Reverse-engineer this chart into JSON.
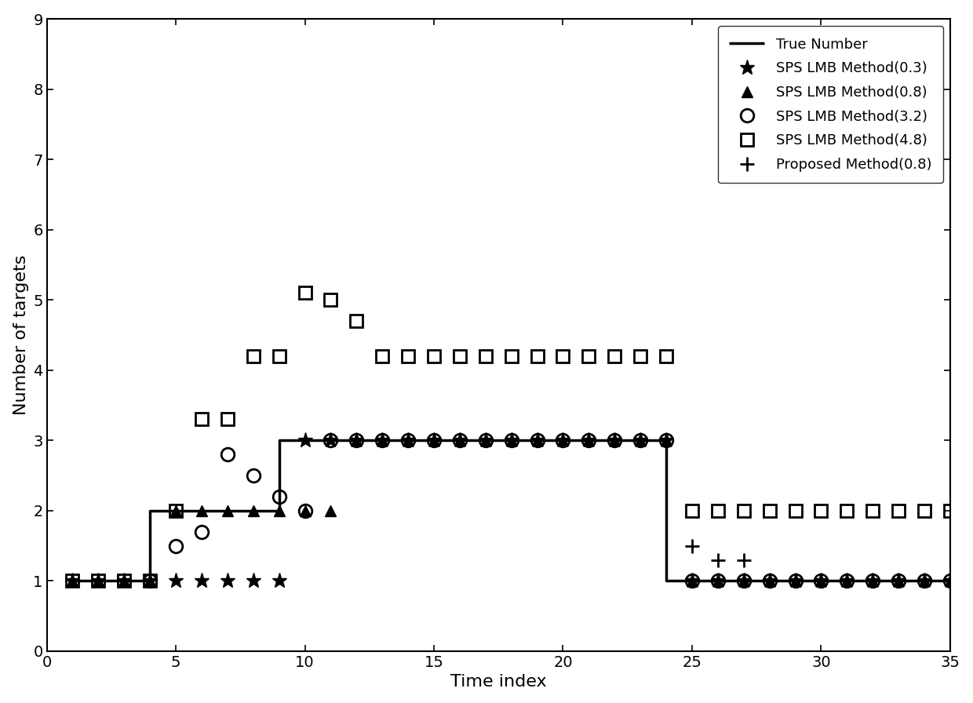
{
  "true_number": {
    "x": [
      1,
      4,
      4,
      9,
      9,
      24,
      24,
      35
    ],
    "y": [
      1,
      1,
      2,
      2,
      3,
      3,
      1,
      1
    ]
  },
  "sps_03": {
    "x": [
      1,
      2,
      3,
      4,
      5,
      6,
      7,
      8,
      9,
      10,
      11,
      12,
      13,
      14,
      15,
      16,
      17,
      18,
      19,
      20,
      21,
      22,
      23,
      24,
      25,
      26,
      27,
      28,
      29,
      30,
      31,
      32,
      33,
      34,
      35
    ],
    "y": [
      1,
      1,
      1,
      1,
      1,
      1,
      1,
      1,
      1,
      3,
      3,
      3,
      3,
      3,
      3,
      3,
      3,
      3,
      3,
      3,
      3,
      3,
      3,
      3,
      1,
      1,
      1,
      1,
      1,
      1,
      1,
      1,
      1,
      1,
      1
    ]
  },
  "sps_08": {
    "x": [
      1,
      2,
      3,
      4,
      5,
      6,
      7,
      8,
      9,
      10,
      11,
      12,
      13,
      14,
      15,
      16,
      17,
      18,
      19,
      20,
      21,
      22,
      23,
      24,
      25,
      26,
      27,
      28,
      29,
      30,
      31,
      32,
      33,
      34,
      35
    ],
    "y": [
      1,
      1,
      1,
      1,
      2,
      2,
      2,
      2,
      2,
      2,
      2,
      3,
      3,
      3,
      3,
      3,
      3,
      3,
      3,
      3,
      3,
      3,
      3,
      3,
      1,
      1,
      1,
      1,
      1,
      1,
      1,
      1,
      1,
      1,
      1
    ]
  },
  "sps_32": {
    "x": [
      4,
      5,
      6,
      7,
      8,
      9,
      10,
      11,
      12,
      13,
      14,
      15,
      16,
      17,
      18,
      19,
      20,
      21,
      22,
      23,
      24,
      25,
      26,
      27,
      28,
      29,
      30,
      31,
      32,
      33,
      34,
      35
    ],
    "y": [
      1,
      1.5,
      1.7,
      2.8,
      2.5,
      2.2,
      2.0,
      3,
      3,
      3,
      3,
      3,
      3,
      3,
      3,
      3,
      3,
      3,
      3,
      3,
      3,
      1,
      1,
      1,
      1,
      1,
      1,
      1,
      1,
      1,
      1,
      1
    ]
  },
  "sps_48": {
    "x": [
      1,
      2,
      3,
      4,
      5,
      6,
      7,
      8,
      9,
      10,
      11,
      12,
      13,
      14,
      15,
      16,
      17,
      18,
      19,
      20,
      21,
      22,
      23,
      24,
      25,
      26,
      27,
      28,
      29,
      30,
      31,
      32,
      33,
      34,
      35
    ],
    "y": [
      1,
      1,
      1,
      1,
      2,
      3.3,
      3.3,
      4.2,
      4.2,
      5.1,
      5.0,
      4.7,
      4.2,
      4.2,
      4.2,
      4.2,
      4.2,
      4.2,
      4.2,
      4.2,
      4.2,
      4.2,
      4.2,
      4.2,
      2,
      2,
      2,
      2,
      2,
      2,
      2,
      2,
      2,
      2,
      2
    ]
  },
  "proposed_08": {
    "x": [
      25,
      26,
      27,
      28,
      29,
      30,
      31,
      32,
      33,
      34,
      35
    ],
    "y": [
      1.5,
      1.3,
      1.3,
      1,
      1,
      1,
      1,
      1,
      1,
      1,
      1
    ]
  },
  "xlim": [
    0,
    35
  ],
  "ylim": [
    0,
    9
  ],
  "xticks": [
    0,
    5,
    10,
    15,
    20,
    25,
    30,
    35
  ],
  "yticks": [
    0,
    1,
    2,
    3,
    4,
    5,
    6,
    7,
    8,
    9
  ],
  "xlabel": "Time index",
  "ylabel": "Number of targets",
  "legend_entries": [
    "True Number",
    "SPS LMB Method(0.3)",
    "SPS LMB Method(0.8)",
    "SPS LMB Method(3.2)",
    "SPS LMB Method(4.8)",
    "Proposed Method(0.8)"
  ]
}
